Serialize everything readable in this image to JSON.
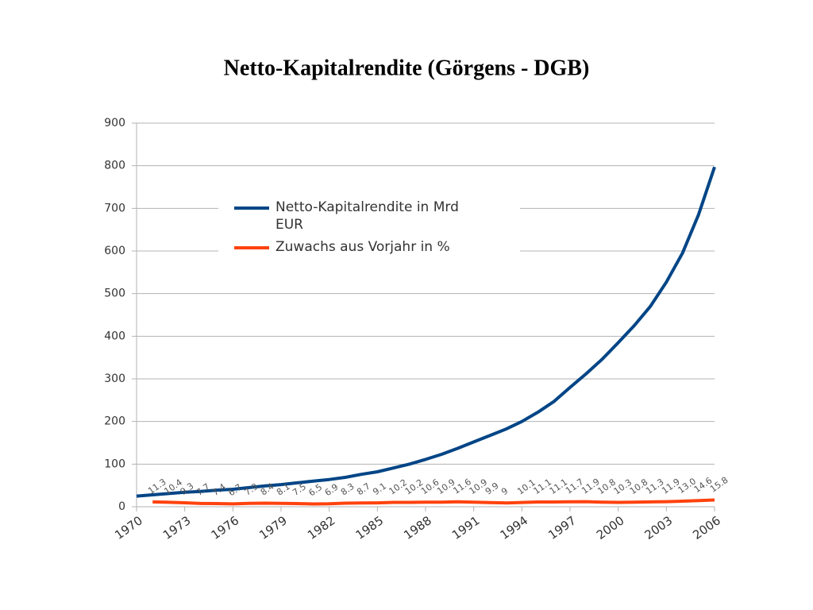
{
  "chart_data": {
    "type": "line",
    "title": "Netto-Kapitalrendite (Görgens - DGB)",
    "x": [
      1970,
      1971,
      1972,
      1973,
      1974,
      1975,
      1976,
      1977,
      1978,
      1979,
      1980,
      1981,
      1982,
      1983,
      1984,
      1985,
      1986,
      1987,
      1988,
      1989,
      1990,
      1991,
      1992,
      1993,
      1994,
      1995,
      1996,
      1997,
      1998,
      1999,
      2000,
      2001,
      2002,
      2003,
      2004,
      2005,
      2006
    ],
    "xlim": [
      1970,
      2006
    ],
    "xticks": [
      1970,
      1973,
      1976,
      1979,
      1982,
      1985,
      1988,
      1991,
      1994,
      1997,
      2000,
      2003,
      2006
    ],
    "ylim": [
      0,
      900
    ],
    "yticks": [
      0,
      100,
      200,
      300,
      400,
      500,
      600,
      700,
      800,
      900
    ],
    "grid": true,
    "legend": "upper-left",
    "series": [
      {
        "name": "Netto-Kapitalrendite in Mrd EUR",
        "color": "#004586",
        "values": [
          25,
          28,
          31,
          34,
          36,
          39,
          41,
          45,
          49,
          52,
          56,
          60,
          64,
          69,
          76,
          82,
          91,
          100,
          111,
          123,
          137,
          152,
          167,
          182,
          200,
          222,
          247,
          280,
          312,
          346,
          385,
          425,
          470,
          527,
          595,
          685,
          797
        ]
      },
      {
        "name": "Zuwachs aus Vorjahr in %",
        "color": "#ff420e",
        "values": [
          null,
          11.3,
          10.4,
          9.3,
          7.7,
          7.4,
          6.7,
          7.9,
          8.4,
          8.1,
          7.5,
          6.5,
          6.9,
          8.3,
          8.7,
          9.1,
          10.2,
          10.2,
          10.6,
          10.9,
          11.6,
          10.9,
          9.9,
          9,
          10.1,
          11.1,
          11.1,
          11.7,
          11.9,
          10.8,
          10.3,
          10.8,
          11.3,
          11.9,
          13,
          14.6,
          15.8
        ],
        "value_labels": [
          null,
          "11.3",
          "10.4",
          "9.3",
          "7.7",
          "7.4",
          "6.7",
          "7.9",
          "8.4",
          "8.1",
          "7.5",
          "6.5",
          "6.9",
          "8.3",
          "8.7",
          "9.1",
          "10.2",
          "10.2",
          "10.6",
          "10.9",
          "11.6",
          "10.9",
          "9.9",
          "9",
          "10.1",
          "11.1",
          "11.1",
          "11.7",
          "11.9",
          "10.8",
          "10.3",
          "10.8",
          "11.3",
          "11.9",
          "13.0",
          "14.6",
          "15.8"
        ]
      }
    ]
  }
}
